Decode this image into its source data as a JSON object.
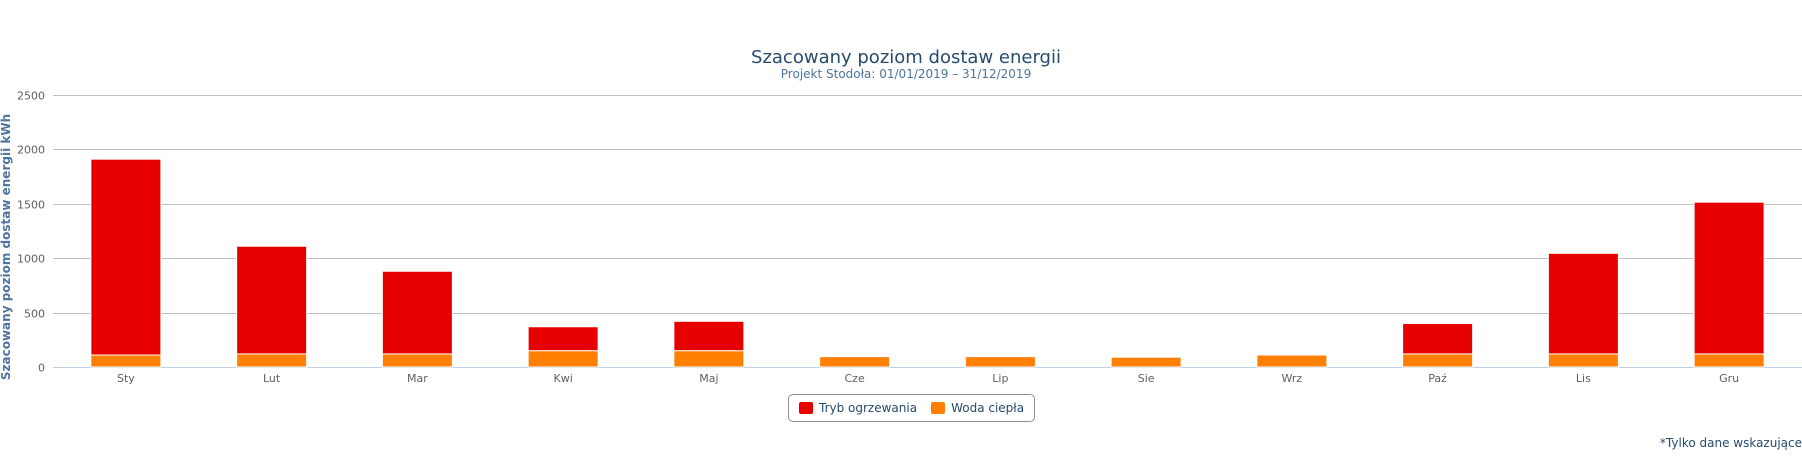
{
  "chart_data": {
    "type": "bar",
    "stacked": true,
    "title": "Szacowany poziom dostaw energii",
    "subtitle": "Projekt Stodoła: 01/01/2019 – 31/12/2019",
    "xlabel": "",
    "ylabel": "Szacowany poziom dostaw energii kWh",
    "ylim": [
      0,
      2500
    ],
    "yticks": [
      0,
      500,
      1000,
      1500,
      2000,
      2500
    ],
    "grid": true,
    "legend_position": "bottom-center",
    "categories": [
      "Sty",
      "Lut",
      "Mar",
      "Kwi",
      "Maj",
      "Cze",
      "Lip",
      "Sie",
      "Wrz",
      "Paź",
      "Lis",
      "Gru"
    ],
    "series": [
      {
        "name": "Woda ciepła",
        "color": "#ff7f00",
        "values": [
          110,
          120,
          120,
          150,
          150,
          95,
          95,
          90,
          110,
          120,
          120,
          120
        ]
      },
      {
        "name": "Tryb ogrzewania",
        "color": "#e60000",
        "values": [
          1800,
          990,
          760,
          220,
          270,
          0,
          0,
          0,
          0,
          280,
          925,
          1395
        ]
      }
    ]
  },
  "legend": {
    "items": [
      {
        "label": "Tryb ogrzewania",
        "color": "#e60000"
      },
      {
        "label": "Woda ciepła",
        "color": "#ff7f00"
      }
    ]
  },
  "footnote": "*Tylko dane wskazujące"
}
